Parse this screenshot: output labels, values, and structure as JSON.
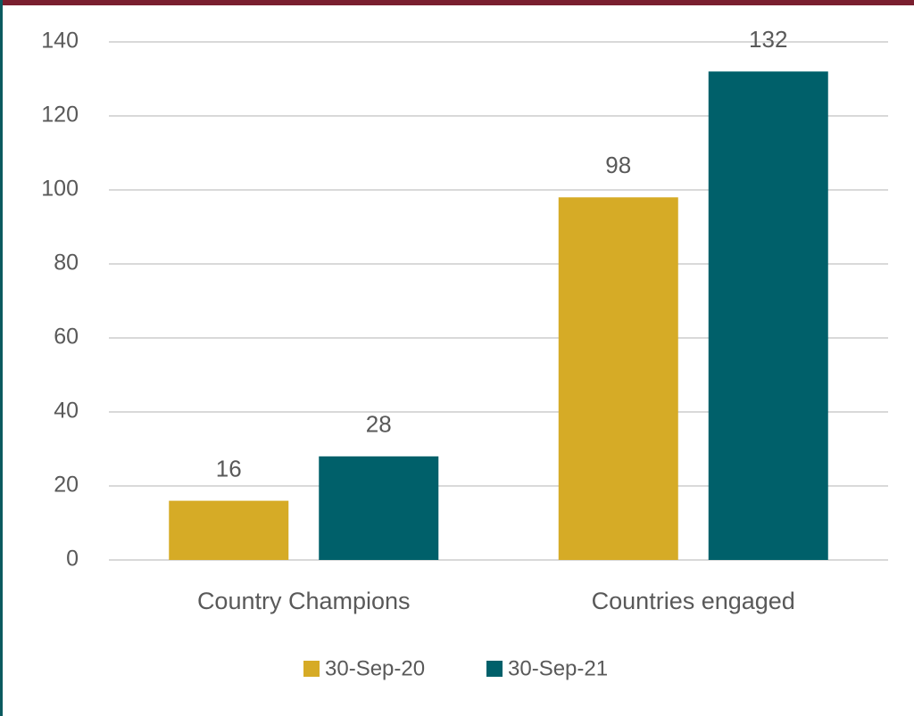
{
  "chart_data": {
    "type": "bar",
    "categories": [
      "Country Champions",
      "Countries engaged"
    ],
    "series": [
      {
        "name": "30-Sep-20",
        "color": "#d6ab26",
        "values": [
          16,
          98
        ]
      },
      {
        "name": "30-Sep-21",
        "color": "#00606a",
        "values": [
          28,
          132
        ]
      }
    ],
    "ylim": [
      0,
      140
    ],
    "yticks": [
      0,
      20,
      40,
      60,
      80,
      100,
      120,
      140
    ],
    "grid": true,
    "legend": "bottom",
    "data_labels": true
  }
}
